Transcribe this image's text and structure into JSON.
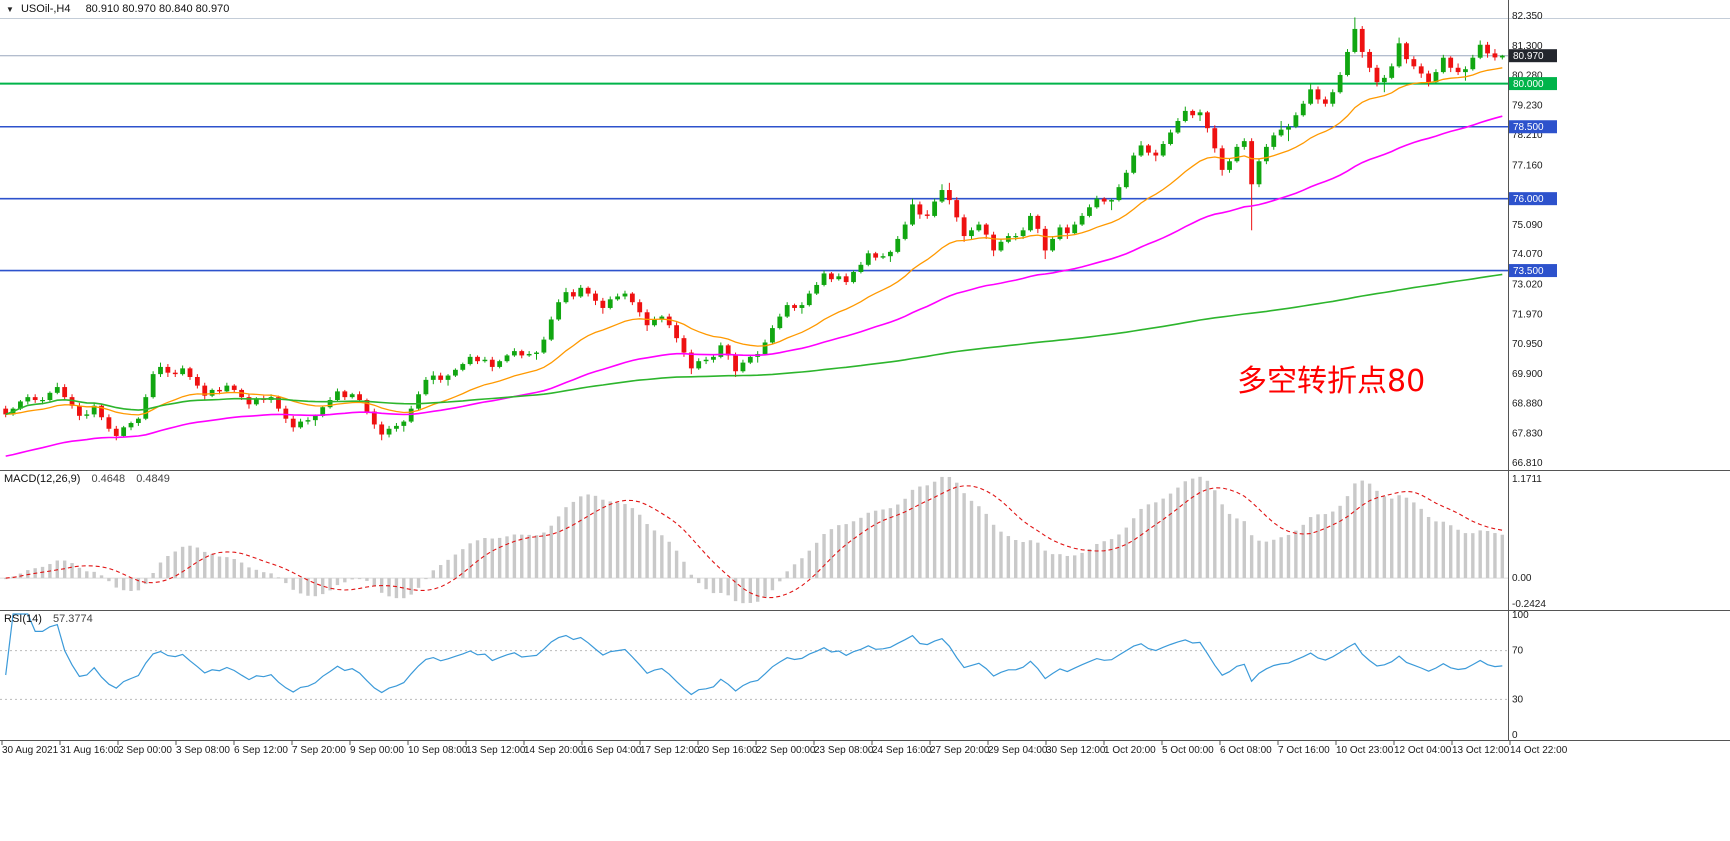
{
  "window": {
    "symbol_period": "USOil-,H4",
    "ohlc": "80.910 80.970 80.840 80.970"
  },
  "chart_data": {
    "type": "candlestick",
    "symbol": "USOil-",
    "timeframe": "H4",
    "price_axis": {
      "top_price": 82.35,
      "bottom_price": 66.81,
      "ticks": [
        "82.350",
        "81.300",
        "80.280",
        "79.230",
        "78.210",
        "77.160",
        "75.090",
        "74.070",
        "73.020",
        "71.970",
        "70.950",
        "69.900",
        "68.880",
        "67.830",
        "66.810"
      ]
    },
    "time_axis": {
      "labels": [
        "30 Aug 2021",
        "31 Aug 16:00",
        "2 Sep 00:00",
        "3 Sep 08:00",
        "6 Sep 12:00",
        "7 Sep 20:00",
        "9 Sep 00:00",
        "10 Sep 08:00",
        "13 Sep 12:00",
        "14 Sep 20:00",
        "16 Sep 04:00",
        "17 Sep 12:00",
        "20 Sep 16:00",
        "22 Sep 00:00",
        "23 Sep 08:00",
        "24 Sep 16:00",
        "27 Sep 20:00",
        "29 Sep 04:00",
        "30 Sep 12:00",
        "1 Oct 20:00",
        "5 Oct 00:00",
        "6 Oct 08:00",
        "7 Oct 16:00",
        "10 Oct 23:00",
        "12 Oct 04:00",
        "13 Oct 12:00",
        "14 Oct 22:00"
      ]
    },
    "current_price": {
      "value": 80.97,
      "label": "80.970"
    },
    "h_lines": [
      {
        "value": 80.0,
        "label": "80.000",
        "color": "#00b44a",
        "width": 2
      },
      {
        "value": 78.5,
        "label": "78.500",
        "color": "#2d52cc",
        "width": 1.6
      },
      {
        "value": 76.0,
        "label": "76.000",
        "color": "#2d52cc",
        "width": 1.6
      },
      {
        "value": 73.5,
        "label": "73.500",
        "color": "#2d52cc",
        "width": 1.6
      }
    ],
    "annotation": {
      "text": "多空转折点80",
      "color": "#ff0000"
    },
    "indicators": {
      "macd": {
        "label": "MACD(12,26,9)",
        "values": [
          "0.4648",
          "0.4849"
        ],
        "axis": [
          "1.1711",
          "0.00",
          "-0.2424"
        ]
      },
      "rsi": {
        "label": "RSI(14)",
        "value": "57.3774",
        "axis": [
          "100",
          "70",
          "30",
          "0"
        ],
        "levels": [
          70,
          30
        ]
      }
    },
    "ma": [
      {
        "type": "ema",
        "period": 20,
        "seed": null,
        "color_key": "ma_fast",
        "name": "ma-fast-line",
        "width": 1.3
      },
      {
        "type": "ema",
        "period": 60,
        "seed": 67.0,
        "color_key": "ma_mid",
        "name": "ma-mid-line",
        "width": 1.6
      },
      {
        "type": "cum",
        "period": 0,
        "seed": null,
        "color_key": "ma_slow",
        "name": "ma-slow-line",
        "width": 1.6
      }
    ],
    "colors": {
      "bull": "#11a611",
      "bear": "#ee1111",
      "ma_fast": "#ff9900",
      "ma_mid": "#ff00ff",
      "ma_slow": "#2db52d",
      "price_line": "#9aa7bd",
      "price_badge": "#23262d",
      "macd_hist": "#c9c9c9",
      "macd_signal": "#e01414",
      "macd_zero": "#dddddd",
      "rsi_line": "#3b9ad9",
      "level_dotted": "#bbbbbb",
      "text": "#1a1a1a",
      "separator": "#555555",
      "hairline": "#c4cdd8"
    },
    "candles": [
      [
        68.7,
        68.8,
        68.4,
        68.5
      ],
      [
        68.5,
        68.75,
        68.45,
        68.7
      ],
      [
        68.7,
        69.0,
        68.65,
        68.95
      ],
      [
        68.95,
        69.2,
        68.85,
        69.1
      ],
      [
        69.1,
        69.2,
        68.9,
        69.0
      ],
      [
        69.0,
        69.1,
        68.85,
        69.0
      ],
      [
        69.0,
        69.3,
        68.95,
        69.25
      ],
      [
        69.25,
        69.6,
        69.2,
        69.45
      ],
      [
        69.45,
        69.55,
        69.0,
        69.1
      ],
      [
        69.1,
        69.2,
        68.7,
        68.8
      ],
      [
        68.8,
        68.9,
        68.3,
        68.45
      ],
      [
        68.45,
        68.65,
        68.35,
        68.5
      ],
      [
        68.5,
        68.9,
        68.4,
        68.8
      ],
      [
        68.8,
        68.85,
        68.3,
        68.4
      ],
      [
        68.4,
        68.5,
        67.9,
        68.0
      ],
      [
        68.0,
        68.1,
        67.6,
        67.75
      ],
      [
        67.75,
        68.1,
        67.7,
        68.05
      ],
      [
        68.05,
        68.25,
        67.95,
        68.2
      ],
      [
        68.2,
        68.4,
        68.1,
        68.35
      ],
      [
        68.35,
        69.2,
        68.3,
        69.1
      ],
      [
        69.1,
        70.0,
        69.05,
        69.9
      ],
      [
        69.9,
        70.3,
        69.8,
        70.15
      ],
      [
        70.15,
        70.25,
        69.8,
        69.95
      ],
      [
        69.95,
        70.05,
        69.8,
        69.9
      ],
      [
        69.9,
        70.2,
        69.85,
        70.1
      ],
      [
        70.1,
        70.15,
        69.7,
        69.8
      ],
      [
        69.8,
        69.9,
        69.4,
        69.5
      ],
      [
        69.5,
        69.6,
        69.0,
        69.15
      ],
      [
        69.15,
        69.4,
        69.1,
        69.35
      ],
      [
        69.35,
        69.45,
        69.2,
        69.3
      ],
      [
        69.3,
        69.6,
        69.25,
        69.5
      ],
      [
        69.5,
        69.55,
        69.25,
        69.35
      ],
      [
        69.35,
        69.4,
        69.0,
        69.1
      ],
      [
        69.1,
        69.2,
        68.7,
        68.85
      ],
      [
        68.85,
        69.1,
        68.8,
        69.05
      ],
      [
        69.05,
        69.15,
        68.9,
        69.0
      ],
      [
        69.0,
        69.2,
        68.9,
        69.1
      ],
      [
        69.1,
        69.15,
        68.6,
        68.7
      ],
      [
        68.7,
        68.8,
        68.2,
        68.35
      ],
      [
        68.35,
        68.45,
        67.9,
        68.05
      ],
      [
        68.05,
        68.35,
        68.0,
        68.25
      ],
      [
        68.25,
        68.4,
        68.15,
        68.3
      ],
      [
        68.3,
        68.5,
        68.1,
        68.45
      ],
      [
        68.45,
        68.8,
        68.4,
        68.75
      ],
      [
        68.75,
        69.1,
        68.7,
        69.0
      ],
      [
        69.0,
        69.4,
        68.95,
        69.3
      ],
      [
        69.3,
        69.35,
        69.0,
        69.1
      ],
      [
        69.1,
        69.25,
        69.05,
        69.2
      ],
      [
        69.2,
        69.3,
        68.9,
        69.0
      ],
      [
        69.0,
        69.05,
        68.5,
        68.6
      ],
      [
        68.6,
        68.7,
        68.0,
        68.15
      ],
      [
        68.15,
        68.25,
        67.6,
        67.8
      ],
      [
        67.8,
        68.1,
        67.7,
        68.0
      ],
      [
        68.0,
        68.2,
        67.9,
        68.1
      ],
      [
        68.1,
        68.3,
        67.9,
        68.25
      ],
      [
        68.25,
        68.8,
        68.2,
        68.7
      ],
      [
        68.7,
        69.3,
        68.65,
        69.2
      ],
      [
        69.2,
        69.8,
        69.15,
        69.7
      ],
      [
        69.7,
        70.0,
        69.55,
        69.85
      ],
      [
        69.85,
        69.95,
        69.6,
        69.7
      ],
      [
        69.7,
        69.9,
        69.5,
        69.85
      ],
      [
        69.85,
        70.1,
        69.8,
        70.05
      ],
      [
        70.05,
        70.3,
        70.0,
        70.25
      ],
      [
        70.25,
        70.6,
        70.2,
        70.5
      ],
      [
        70.5,
        70.55,
        70.25,
        70.35
      ],
      [
        70.35,
        70.5,
        70.3,
        70.4
      ],
      [
        70.4,
        70.5,
        70.0,
        70.15
      ],
      [
        70.15,
        70.4,
        70.1,
        70.35
      ],
      [
        70.35,
        70.6,
        70.3,
        70.55
      ],
      [
        70.55,
        70.8,
        70.5,
        70.7
      ],
      [
        70.7,
        70.75,
        70.45,
        70.55
      ],
      [
        70.55,
        70.7,
        70.5,
        70.6
      ],
      [
        70.6,
        70.7,
        70.4,
        70.65
      ],
      [
        70.65,
        71.2,
        70.6,
        71.1
      ],
      [
        71.1,
        71.9,
        71.05,
        71.8
      ],
      [
        71.8,
        72.5,
        71.75,
        72.4
      ],
      [
        72.4,
        72.9,
        72.35,
        72.75
      ],
      [
        72.75,
        72.85,
        72.5,
        72.6
      ],
      [
        72.6,
        73.0,
        72.55,
        72.9
      ],
      [
        72.9,
        72.95,
        72.6,
        72.7
      ],
      [
        72.7,
        72.8,
        72.3,
        72.45
      ],
      [
        72.45,
        72.55,
        72.0,
        72.2
      ],
      [
        72.2,
        72.6,
        72.15,
        72.5
      ],
      [
        72.5,
        72.7,
        72.45,
        72.6
      ],
      [
        72.6,
        72.8,
        72.5,
        72.7
      ],
      [
        72.7,
        72.75,
        72.3,
        72.4
      ],
      [
        72.4,
        72.5,
        71.9,
        72.05
      ],
      [
        72.05,
        72.15,
        71.4,
        71.6
      ],
      [
        71.6,
        71.9,
        71.55,
        71.8
      ],
      [
        71.8,
        71.95,
        71.7,
        71.9
      ],
      [
        71.9,
        72.0,
        71.5,
        71.6
      ],
      [
        71.6,
        71.7,
        71.0,
        71.15
      ],
      [
        71.15,
        71.25,
        70.5,
        70.65
      ],
      [
        70.65,
        70.75,
        69.9,
        70.1
      ],
      [
        70.1,
        70.45,
        70.05,
        70.35
      ],
      [
        70.35,
        70.5,
        70.25,
        70.4
      ],
      [
        70.4,
        70.6,
        70.3,
        70.5
      ],
      [
        70.5,
        71.0,
        70.45,
        70.9
      ],
      [
        70.9,
        70.95,
        70.4,
        70.55
      ],
      [
        70.55,
        70.65,
        69.8,
        70.0
      ],
      [
        70.0,
        70.4,
        69.95,
        70.3
      ],
      [
        70.3,
        70.55,
        70.25,
        70.5
      ],
      [
        70.5,
        70.7,
        70.3,
        70.6
      ],
      [
        70.6,
        71.1,
        70.55,
        71.0
      ],
      [
        71.0,
        71.6,
        70.95,
        71.5
      ],
      [
        71.5,
        72.0,
        71.45,
        71.9
      ],
      [
        71.9,
        72.4,
        71.85,
        72.3
      ],
      [
        72.3,
        72.35,
        72.1,
        72.2
      ],
      [
        72.2,
        72.4,
        72.0,
        72.3
      ],
      [
        72.3,
        72.8,
        72.25,
        72.7
      ],
      [
        72.7,
        73.1,
        72.65,
        73.0
      ],
      [
        73.0,
        73.5,
        72.95,
        73.4
      ],
      [
        73.4,
        73.45,
        73.1,
        73.2
      ],
      [
        73.2,
        73.4,
        73.15,
        73.3
      ],
      [
        73.3,
        73.4,
        73.0,
        73.1
      ],
      [
        73.1,
        73.5,
        73.05,
        73.45
      ],
      [
        73.45,
        73.8,
        73.4,
        73.7
      ],
      [
        73.7,
        74.2,
        73.65,
        74.1
      ],
      [
        74.1,
        74.15,
        73.85,
        73.95
      ],
      [
        73.95,
        74.1,
        73.9,
        74.0
      ],
      [
        74.0,
        74.2,
        73.8,
        74.15
      ],
      [
        74.15,
        74.7,
        74.1,
        74.6
      ],
      [
        74.6,
        75.2,
        74.55,
        75.1
      ],
      [
        75.1,
        76.0,
        75.05,
        75.8
      ],
      [
        75.8,
        75.9,
        75.3,
        75.45
      ],
      [
        75.45,
        75.6,
        75.3,
        75.4
      ],
      [
        75.4,
        76.0,
        75.35,
        75.9
      ],
      [
        75.9,
        76.5,
        75.85,
        76.3
      ],
      [
        76.3,
        76.55,
        75.8,
        75.95
      ],
      [
        75.95,
        76.05,
        75.2,
        75.35
      ],
      [
        75.35,
        75.45,
        74.5,
        74.7
      ],
      [
        74.7,
        75.0,
        74.6,
        74.9
      ],
      [
        74.9,
        75.2,
        74.85,
        75.1
      ],
      [
        75.1,
        75.15,
        74.6,
        74.75
      ],
      [
        74.75,
        74.85,
        74.0,
        74.2
      ],
      [
        74.2,
        74.6,
        74.15,
        74.5
      ],
      [
        74.5,
        74.8,
        74.45,
        74.7
      ],
      [
        74.7,
        74.8,
        74.55,
        74.7
      ],
      [
        74.7,
        75.0,
        74.6,
        74.9
      ],
      [
        74.9,
        75.5,
        74.85,
        75.4
      ],
      [
        75.4,
        75.45,
        74.8,
        74.95
      ],
      [
        74.95,
        75.05,
        73.9,
        74.2
      ],
      [
        74.2,
        74.7,
        74.15,
        74.6
      ],
      [
        74.6,
        75.1,
        74.55,
        75.0
      ],
      [
        75.0,
        75.1,
        74.6,
        74.8
      ],
      [
        74.8,
        75.2,
        74.75,
        75.1
      ],
      [
        75.1,
        75.5,
        75.05,
        75.4
      ],
      [
        75.4,
        75.8,
        75.35,
        75.7
      ],
      [
        75.7,
        76.1,
        75.65,
        76.0
      ],
      [
        76.0,
        76.05,
        75.8,
        75.9
      ],
      [
        75.9,
        76.0,
        75.6,
        75.95
      ],
      [
        75.95,
        76.5,
        75.9,
        76.4
      ],
      [
        76.4,
        77.0,
        76.35,
        76.9
      ],
      [
        76.9,
        77.6,
        76.85,
        77.5
      ],
      [
        77.5,
        78.0,
        77.45,
        77.85
      ],
      [
        77.85,
        77.9,
        77.5,
        77.6
      ],
      [
        77.6,
        77.7,
        77.3,
        77.5
      ],
      [
        77.5,
        78.0,
        77.45,
        77.9
      ],
      [
        77.9,
        78.4,
        77.85,
        78.3
      ],
      [
        78.3,
        78.8,
        78.25,
        78.7
      ],
      [
        78.7,
        79.2,
        78.65,
        79.05
      ],
      [
        79.05,
        79.1,
        78.8,
        78.9
      ],
      [
        78.9,
        79.1,
        78.7,
        79.0
      ],
      [
        79.0,
        79.05,
        78.3,
        78.45
      ],
      [
        78.45,
        78.55,
        77.6,
        77.75
      ],
      [
        77.75,
        77.85,
        76.8,
        77.0
      ],
      [
        77.0,
        77.4,
        76.9,
        77.3
      ],
      [
        77.3,
        77.9,
        77.25,
        77.8
      ],
      [
        77.8,
        78.1,
        77.7,
        78.0
      ],
      [
        78.0,
        78.1,
        74.9,
        76.5
      ],
      [
        76.5,
        77.4,
        76.4,
        77.3
      ],
      [
        77.3,
        77.9,
        77.2,
        77.8
      ],
      [
        77.8,
        78.3,
        77.7,
        78.2
      ],
      [
        78.2,
        78.7,
        78.15,
        78.4
      ],
      [
        78.4,
        78.6,
        78.0,
        78.5
      ],
      [
        78.5,
        79.0,
        78.45,
        78.9
      ],
      [
        78.9,
        79.4,
        78.85,
        79.3
      ],
      [
        79.3,
        80.0,
        79.25,
        79.8
      ],
      [
        79.8,
        79.9,
        79.3,
        79.45
      ],
      [
        79.45,
        79.55,
        79.2,
        79.3
      ],
      [
        79.3,
        79.8,
        79.2,
        79.7
      ],
      [
        79.7,
        80.4,
        79.65,
        80.3
      ],
      [
        80.3,
        81.2,
        80.25,
        81.1
      ],
      [
        81.1,
        82.3,
        81.05,
        81.9
      ],
      [
        81.9,
        82.0,
        80.9,
        81.1
      ],
      [
        81.1,
        81.2,
        80.4,
        80.55
      ],
      [
        80.55,
        80.65,
        79.9,
        80.05
      ],
      [
        80.05,
        80.3,
        79.7,
        80.2
      ],
      [
        80.2,
        80.7,
        80.15,
        80.6
      ],
      [
        80.6,
        81.6,
        80.55,
        81.4
      ],
      [
        81.4,
        81.45,
        80.7,
        80.85
      ],
      [
        80.85,
        80.95,
        80.5,
        80.6
      ],
      [
        80.6,
        80.7,
        80.2,
        80.35
      ],
      [
        80.35,
        80.45,
        79.9,
        80.05
      ],
      [
        80.05,
        80.5,
        80.0,
        80.4
      ],
      [
        80.4,
        81.0,
        80.35,
        80.9
      ],
      [
        80.9,
        80.95,
        80.4,
        80.55
      ],
      [
        80.55,
        80.7,
        80.3,
        80.4
      ],
      [
        80.4,
        80.6,
        80.1,
        80.5
      ],
      [
        80.5,
        81.0,
        80.45,
        80.9
      ],
      [
        80.9,
        81.5,
        80.85,
        81.35
      ],
      [
        81.35,
        81.45,
        80.9,
        81.05
      ],
      [
        81.05,
        81.2,
        80.8,
        80.91
      ],
      [
        80.91,
        81.0,
        80.84,
        80.97
      ]
    ]
  }
}
